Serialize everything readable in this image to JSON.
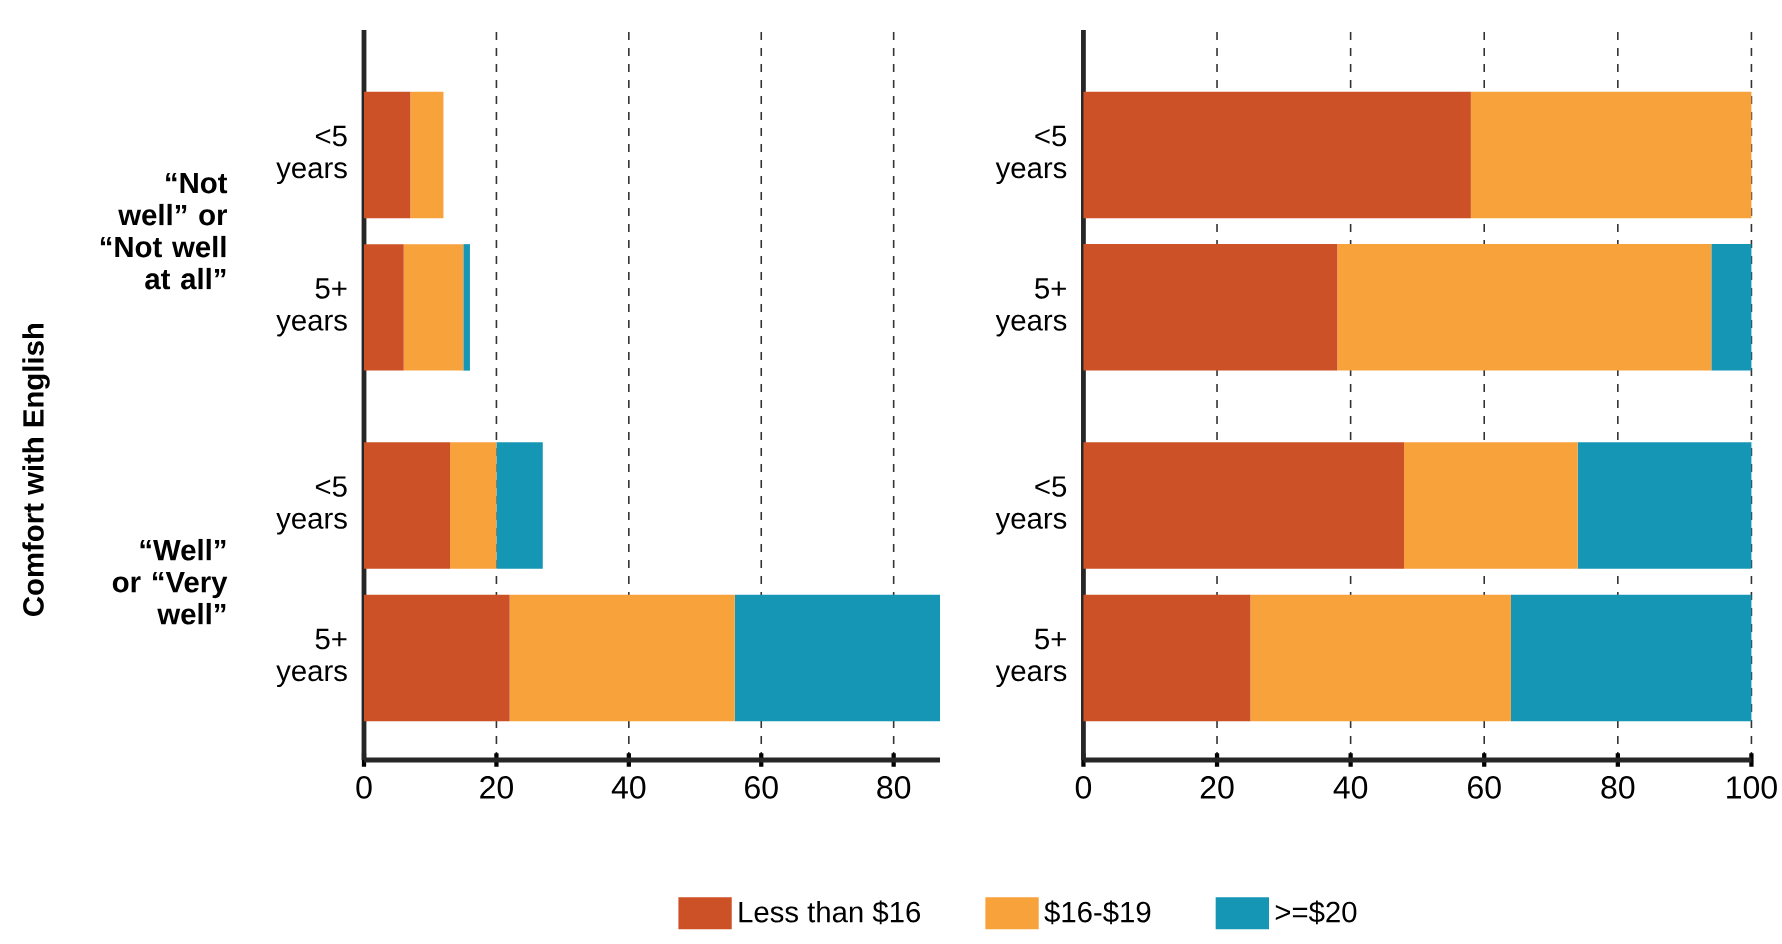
{
  "chart_data": [
    {
      "type": "bar",
      "orientation": "horizontal",
      "stacked": true,
      "ylabel": "Comfort with English",
      "annotations": [
        "“Not well” or “Not well at all”",
        "“Well” or “Very well”"
      ],
      "categories": [
        "<5 years",
        "5+ years",
        "<5 years",
        "5+ years"
      ],
      "series": [
        {
          "name": "Less than $16",
          "color": "#cc5126",
          "values": [
            7,
            6,
            13,
            22
          ]
        },
        {
          "name": "$16-$19",
          "color": "#f7a23b",
          "values": [
            5,
            9,
            7,
            34
          ]
        },
        {
          "name": ">=$20",
          "color": "#1596b5",
          "values": [
            0,
            1,
            7,
            31
          ]
        }
      ],
      "xlim": [
        0,
        87
      ],
      "xticks": [
        0,
        20,
        40,
        60,
        80
      ],
      "grid": "x",
      "legend": "bottom"
    },
    {
      "type": "bar",
      "orientation": "horizontal",
      "stacked": true,
      "categories": [
        "<5 years",
        "5+ years",
        "<5 years",
        "5+ years"
      ],
      "series": [
        {
          "color": "#cc5126",
          "values": [
            58,
            38,
            48,
            25
          ]
        },
        {
          "color": "#f7a23b",
          "values": [
            42,
            56,
            26,
            39
          ]
        },
        {
          "color": "#1596b5",
          "values": [
            0,
            6,
            26,
            36
          ]
        }
      ],
      "xlim": [
        0,
        100
      ],
      "xticks": [
        0,
        20,
        40,
        60,
        80,
        100
      ],
      "grid": "x"
    }
  ]
}
